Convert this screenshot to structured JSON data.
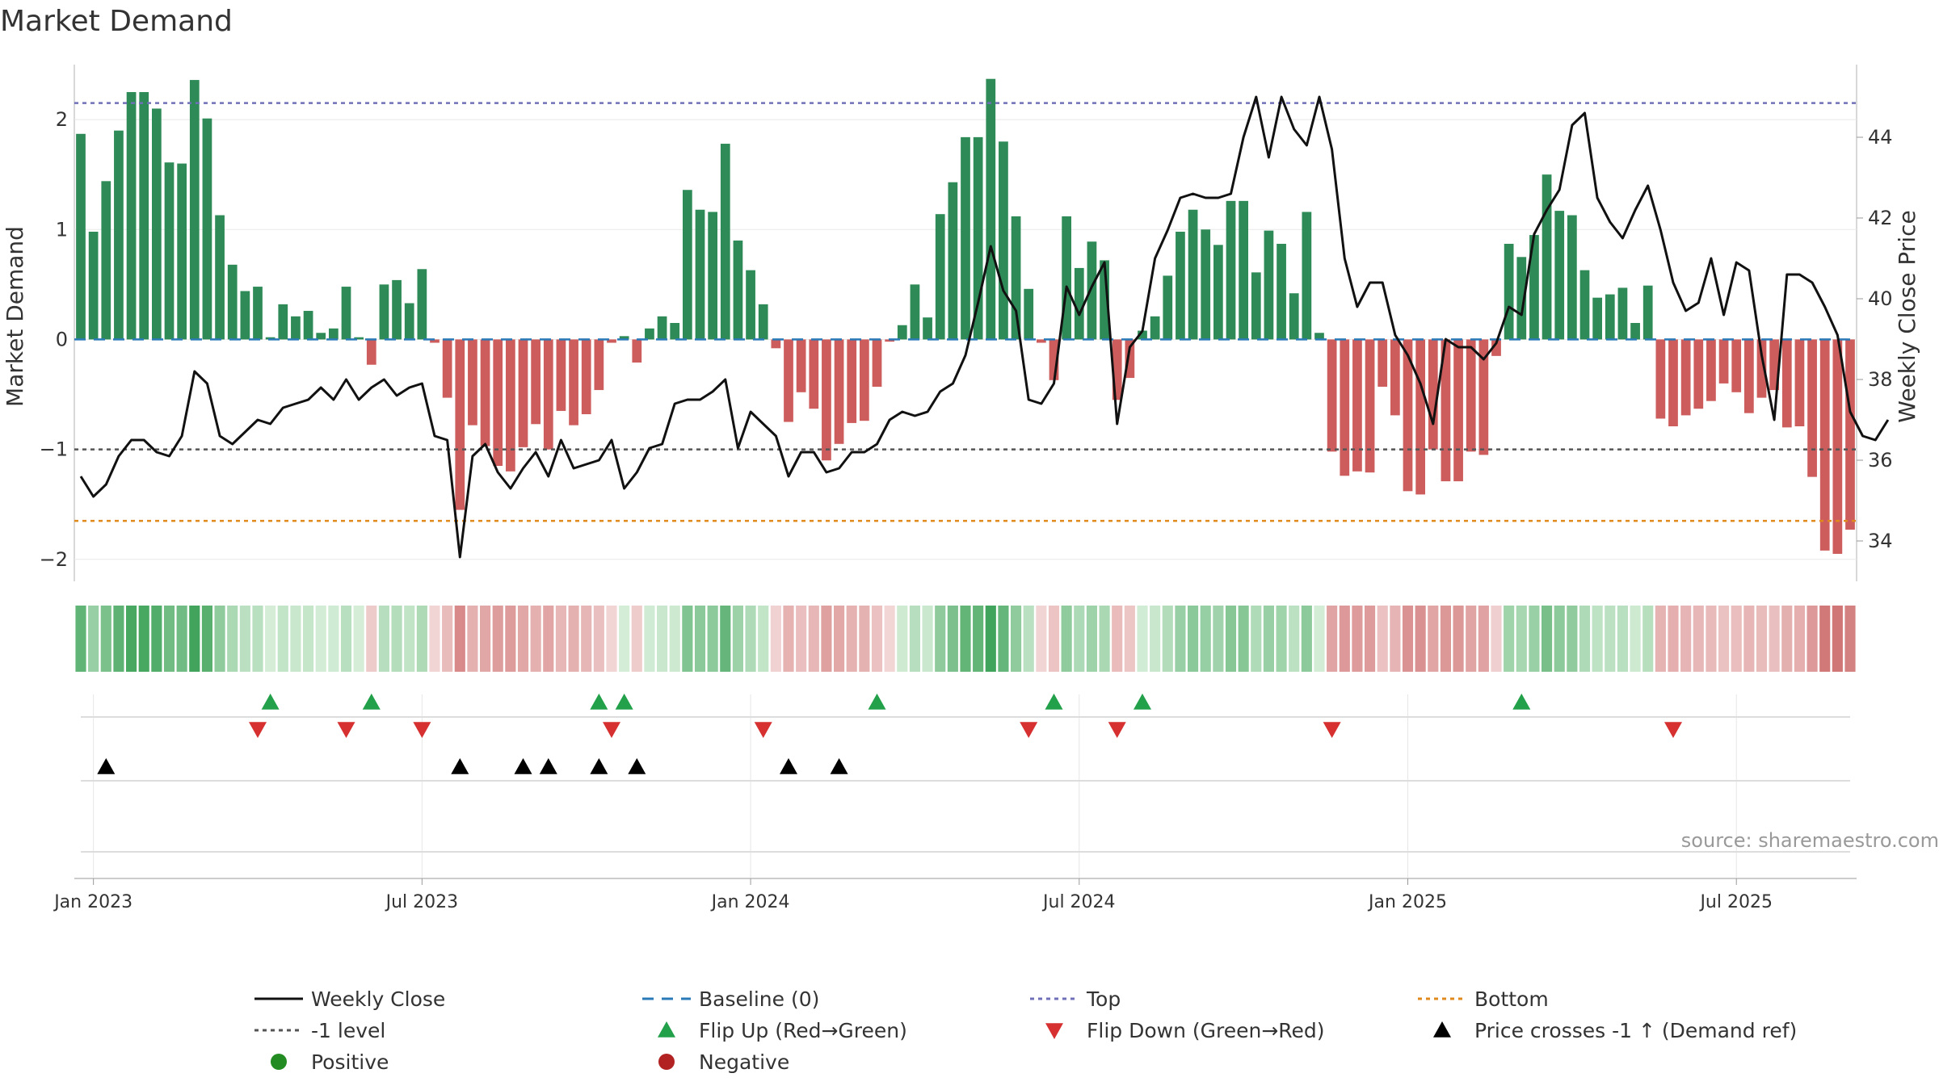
{
  "chart_data": {
    "type": "bar+line",
    "title": "Market Demand",
    "ylabel_left": "Market Demand",
    "ylabel_right": "Weekly Close Price",
    "ylim_left": [
      -2.2,
      2.5
    ],
    "ylim_right": [
      33.0,
      45.8
    ],
    "yticks_left": [
      -2,
      -1,
      0,
      1,
      2
    ],
    "yticks_right": [
      34,
      36,
      38,
      40,
      42,
      44
    ],
    "x_tick_labels": [
      "Jan 2023",
      "Jul 2023",
      "Jan 2024",
      "Jul 2024",
      "Jan 2025",
      "Jul 2025"
    ],
    "x_tick_weeks": [
      1,
      27,
      53,
      79,
      105,
      131
    ],
    "reference_lines": {
      "top": 2.15,
      "minus_one": -1.0,
      "bottom": -1.65,
      "baseline": 0
    },
    "demand": [
      1.87,
      0.98,
      1.44,
      1.9,
      2.25,
      2.25,
      2.1,
      1.61,
      1.6,
      2.36,
      2.01,
      1.13,
      0.68,
      0.44,
      0.48,
      0.02,
      0.32,
      0.21,
      0.26,
      0.06,
      0.1,
      0.48,
      0.02,
      -0.23,
      0.5,
      0.54,
      0.33,
      0.64,
      -0.03,
      -0.53,
      -1.55,
      -0.78,
      -0.97,
      -1.15,
      -1.2,
      -0.98,
      -0.77,
      -1.0,
      -0.65,
      -0.78,
      -0.68,
      -0.46,
      -0.03,
      0.03,
      -0.21,
      0.1,
      0.21,
      0.15,
      1.36,
      1.18,
      1.16,
      1.78,
      0.9,
      0.63,
      0.32,
      -0.08,
      -0.75,
      -0.48,
      -0.63,
      -1.1,
      -0.95,
      -0.76,
      -0.74,
      -0.43,
      -0.02,
      0.13,
      0.5,
      0.2,
      1.14,
      1.43,
      1.84,
      1.84,
      2.37,
      1.8,
      1.12,
      0.46,
      -0.03,
      -0.37,
      1.12,
      0.65,
      0.89,
      0.72,
      -0.55,
      -0.35,
      0.08,
      0.21,
      0.58,
      0.98,
      1.18,
      1.0,
      0.86,
      1.26,
      1.26,
      0.61,
      0.99,
      0.87,
      0.42,
      1.16,
      0.06,
      -1.02,
      -1.24,
      -1.2,
      -1.21,
      -0.43,
      -0.69,
      -1.38,
      -1.41,
      -1.0,
      -1.29,
      -1.29,
      -1.02,
      -1.05,
      -0.15,
      0.87,
      0.75,
      0.95,
      1.5,
      1.17,
      1.13,
      0.63,
      0.38,
      0.41,
      0.47,
      0.15,
      0.49,
      -0.72,
      -0.79,
      -0.69,
      -0.63,
      -0.56,
      -0.4,
      -0.48,
      -0.67,
      -0.53,
      -0.46,
      -0.8,
      -0.79,
      -1.25,
      -1.92,
      -1.95,
      -1.73
    ],
    "weekly_close": [
      35.6,
      35.1,
      35.4,
      36.1,
      36.5,
      36.5,
      36.2,
      36.1,
      36.6,
      38.2,
      37.9,
      36.6,
      36.4,
      36.7,
      37.0,
      36.9,
      37.3,
      37.4,
      37.5,
      37.8,
      37.5,
      38.0,
      37.5,
      37.8,
      38.0,
      37.6,
      37.8,
      37.9,
      36.6,
      36.5,
      33.6,
      36.1,
      36.4,
      35.7,
      35.3,
      35.8,
      36.2,
      35.6,
      36.5,
      35.8,
      35.9,
      36.0,
      36.5,
      35.3,
      35.7,
      36.3,
      36.4,
      37.4,
      37.5,
      37.5,
      37.7,
      38.0,
      36.3,
      37.2,
      36.9,
      36.6,
      35.6,
      36.2,
      36.2,
      35.7,
      35.8,
      36.2,
      36.2,
      36.4,
      37.0,
      37.2,
      37.1,
      37.2,
      37.7,
      37.9,
      38.6,
      39.9,
      41.3,
      40.2,
      39.7,
      37.5,
      37.4,
      37.9,
      40.3,
      39.6,
      40.3,
      40.9,
      36.9,
      38.8,
      39.2,
      41.0,
      41.7,
      42.5,
      42.6,
      42.5,
      42.5,
      42.6,
      44.0,
      45.0,
      43.5,
      45.0,
      44.2,
      43.8,
      45.0,
      43.7,
      41.0,
      39.8,
      40.4,
      40.4,
      39.1,
      38.6,
      37.9,
      36.9,
      39.0,
      38.8,
      38.8,
      38.5,
      38.9,
      39.8,
      39.6,
      41.6,
      42.2,
      42.7,
      44.3,
      44.6,
      42.5,
      41.9,
      41.5,
      42.2,
      42.8,
      41.7,
      40.4,
      39.7,
      39.9,
      41.0,
      39.6,
      40.9,
      40.7,
      38.6,
      37.0,
      40.6,
      40.6,
      40.4,
      39.8,
      39.1,
      37.2,
      36.6,
      36.5,
      37.0
    ]
  },
  "strips": {
    "flip_up_weeks": [
      15,
      23,
      41,
      43,
      63,
      77,
      84,
      114
    ],
    "flip_down_weeks": [
      14,
      21,
      27,
      42,
      54,
      75,
      82,
      99,
      126
    ],
    "price_cross_weeks": [
      2,
      30,
      35,
      37,
      41,
      44,
      56,
      60
    ],
    "source": "source: sharemaestro.com"
  },
  "legend": [
    {
      "label": "Weekly Close",
      "kind": "line",
      "color": "#111111"
    },
    {
      "label": "Baseline (0)",
      "kind": "dash",
      "color": "#2a7ab8"
    },
    {
      "label": "Top",
      "kind": "dot",
      "color": "#7070b8"
    },
    {
      "label": "Bottom",
      "kind": "dot",
      "color": "#e08a1e"
    },
    {
      "label": "-1 level",
      "kind": "dot",
      "color": "#555555"
    },
    {
      "label": "Flip Up (Red→Green)",
      "kind": "up",
      "color": "#22a04a"
    },
    {
      "label": "Flip Down (Green→Red)",
      "kind": "down",
      "color": "#d63030"
    },
    {
      "label": "Price crosses -1 ↑ (Demand ref)",
      "kind": "up",
      "color": "#000000"
    },
    {
      "label": "Positive",
      "kind": "circle",
      "color": "#228b22"
    },
    {
      "label": "Negative",
      "kind": "circle",
      "color": "#b22222"
    }
  ],
  "colors": {
    "positive_bar": "#2e8b57",
    "negative_bar": "#cd5c5c",
    "close_line": "#111111"
  }
}
